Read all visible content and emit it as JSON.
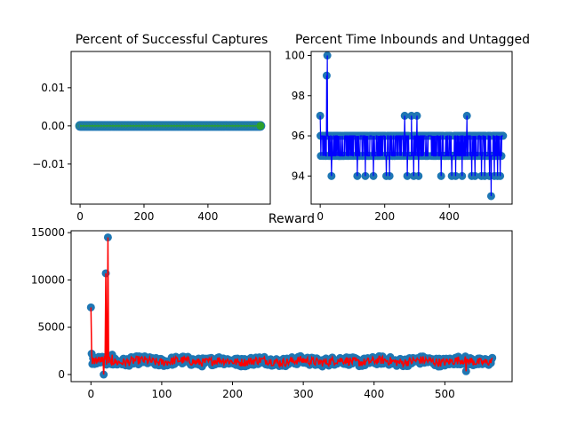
{
  "chart_data": [
    {
      "type": "scatter",
      "title": "Percent of Successful Captures",
      "xlabel": "",
      "ylabel": "",
      "xlim": [
        -28,
        595
      ],
      "ylim": [
        -0.0205,
        0.0195
      ],
      "x_ticks": [
        0,
        200,
        400
      ],
      "x_tick_labels": [
        "0",
        "200",
        "400"
      ],
      "y_ticks": [
        0.01,
        0.0,
        -0.01
      ],
      "y_tick_labels": [
        "0.01",
        "0.00",
        "−0.01"
      ],
      "grid": false,
      "x_start": 0,
      "x_end": 567,
      "x_step": 4,
      "values_constant": 0.0,
      "marker_color": "#2ca02c",
      "marker_edge_color": "#1f77b4",
      "line_color": "#2ca02c"
    },
    {
      "type": "line",
      "title": "Percent Time Inbounds and Untagged",
      "xlabel": "",
      "ylabel": "",
      "xlim": [
        -28,
        595
      ],
      "ylim": [
        92.6,
        100.2
      ],
      "x_ticks": [
        0,
        200,
        400
      ],
      "x_tick_labels": [
        "0",
        "200",
        "400"
      ],
      "y_ticks": [
        94,
        96,
        98,
        100
      ],
      "y_tick_labels": [
        "94",
        "96",
        "98",
        "100"
      ],
      "grid": false,
      "x_start": 0,
      "x_end": 567,
      "base_values": [
        95,
        96
      ],
      "spikes": [
        {
          "x": 0,
          "y": 97
        },
        {
          "x": 3,
          "y": 96
        },
        {
          "x": 10,
          "y": 95
        },
        {
          "x": 20,
          "y": 99
        },
        {
          "x": 22,
          "y": 100
        },
        {
          "x": 24,
          "y": 96
        },
        {
          "x": 35,
          "y": 94
        },
        {
          "x": 115,
          "y": 94
        },
        {
          "x": 140,
          "y": 94
        },
        {
          "x": 165,
          "y": 94
        },
        {
          "x": 205,
          "y": 94
        },
        {
          "x": 215,
          "y": 94
        },
        {
          "x": 262,
          "y": 97
        },
        {
          "x": 270,
          "y": 94
        },
        {
          "x": 283,
          "y": 97
        },
        {
          "x": 290,
          "y": 94
        },
        {
          "x": 300,
          "y": 97
        },
        {
          "x": 305,
          "y": 94
        },
        {
          "x": 375,
          "y": 94
        },
        {
          "x": 408,
          "y": 94
        },
        {
          "x": 420,
          "y": 94
        },
        {
          "x": 440,
          "y": 94
        },
        {
          "x": 455,
          "y": 97
        },
        {
          "x": 470,
          "y": 94
        },
        {
          "x": 480,
          "y": 94
        },
        {
          "x": 500,
          "y": 94
        },
        {
          "x": 510,
          "y": 94
        },
        {
          "x": 525,
          "y": 94
        },
        {
          "x": 530,
          "y": 93
        },
        {
          "x": 540,
          "y": 94
        },
        {
          "x": 550,
          "y": 94
        },
        {
          "x": 558,
          "y": 94
        }
      ],
      "marker_color": "#1f77b4",
      "line_color": "#0000ff"
    },
    {
      "type": "line",
      "title": "Reward",
      "xlabel": "",
      "ylabel": "",
      "xlim": [
        -28,
        595
      ],
      "ylim": [
        -750,
        15200
      ],
      "x_ticks": [
        0,
        100,
        200,
        300,
        400,
        500
      ],
      "x_tick_labels": [
        "0",
        "100",
        "200",
        "300",
        "400",
        "500"
      ],
      "y_ticks": [
        0,
        5000,
        10000,
        15000
      ],
      "y_tick_labels": [
        "0",
        "5000",
        "10000",
        "15000"
      ],
      "grid": false,
      "x_start": 0,
      "x_end": 567,
      "base_value": 1400,
      "base_spread": 450,
      "spikes": [
        {
          "x": 0,
          "y": 7100
        },
        {
          "x": 1,
          "y": 2200
        },
        {
          "x": 4,
          "y": 1700
        },
        {
          "x": 18,
          "y": 0
        },
        {
          "x": 21,
          "y": 10700
        },
        {
          "x": 24,
          "y": 14500
        },
        {
          "x": 25,
          "y": 1200
        },
        {
          "x": 30,
          "y": 2100
        },
        {
          "x": 530,
          "y": 350
        }
      ],
      "marker_color": "#1f77b4",
      "line_color": "#ff0000"
    }
  ]
}
